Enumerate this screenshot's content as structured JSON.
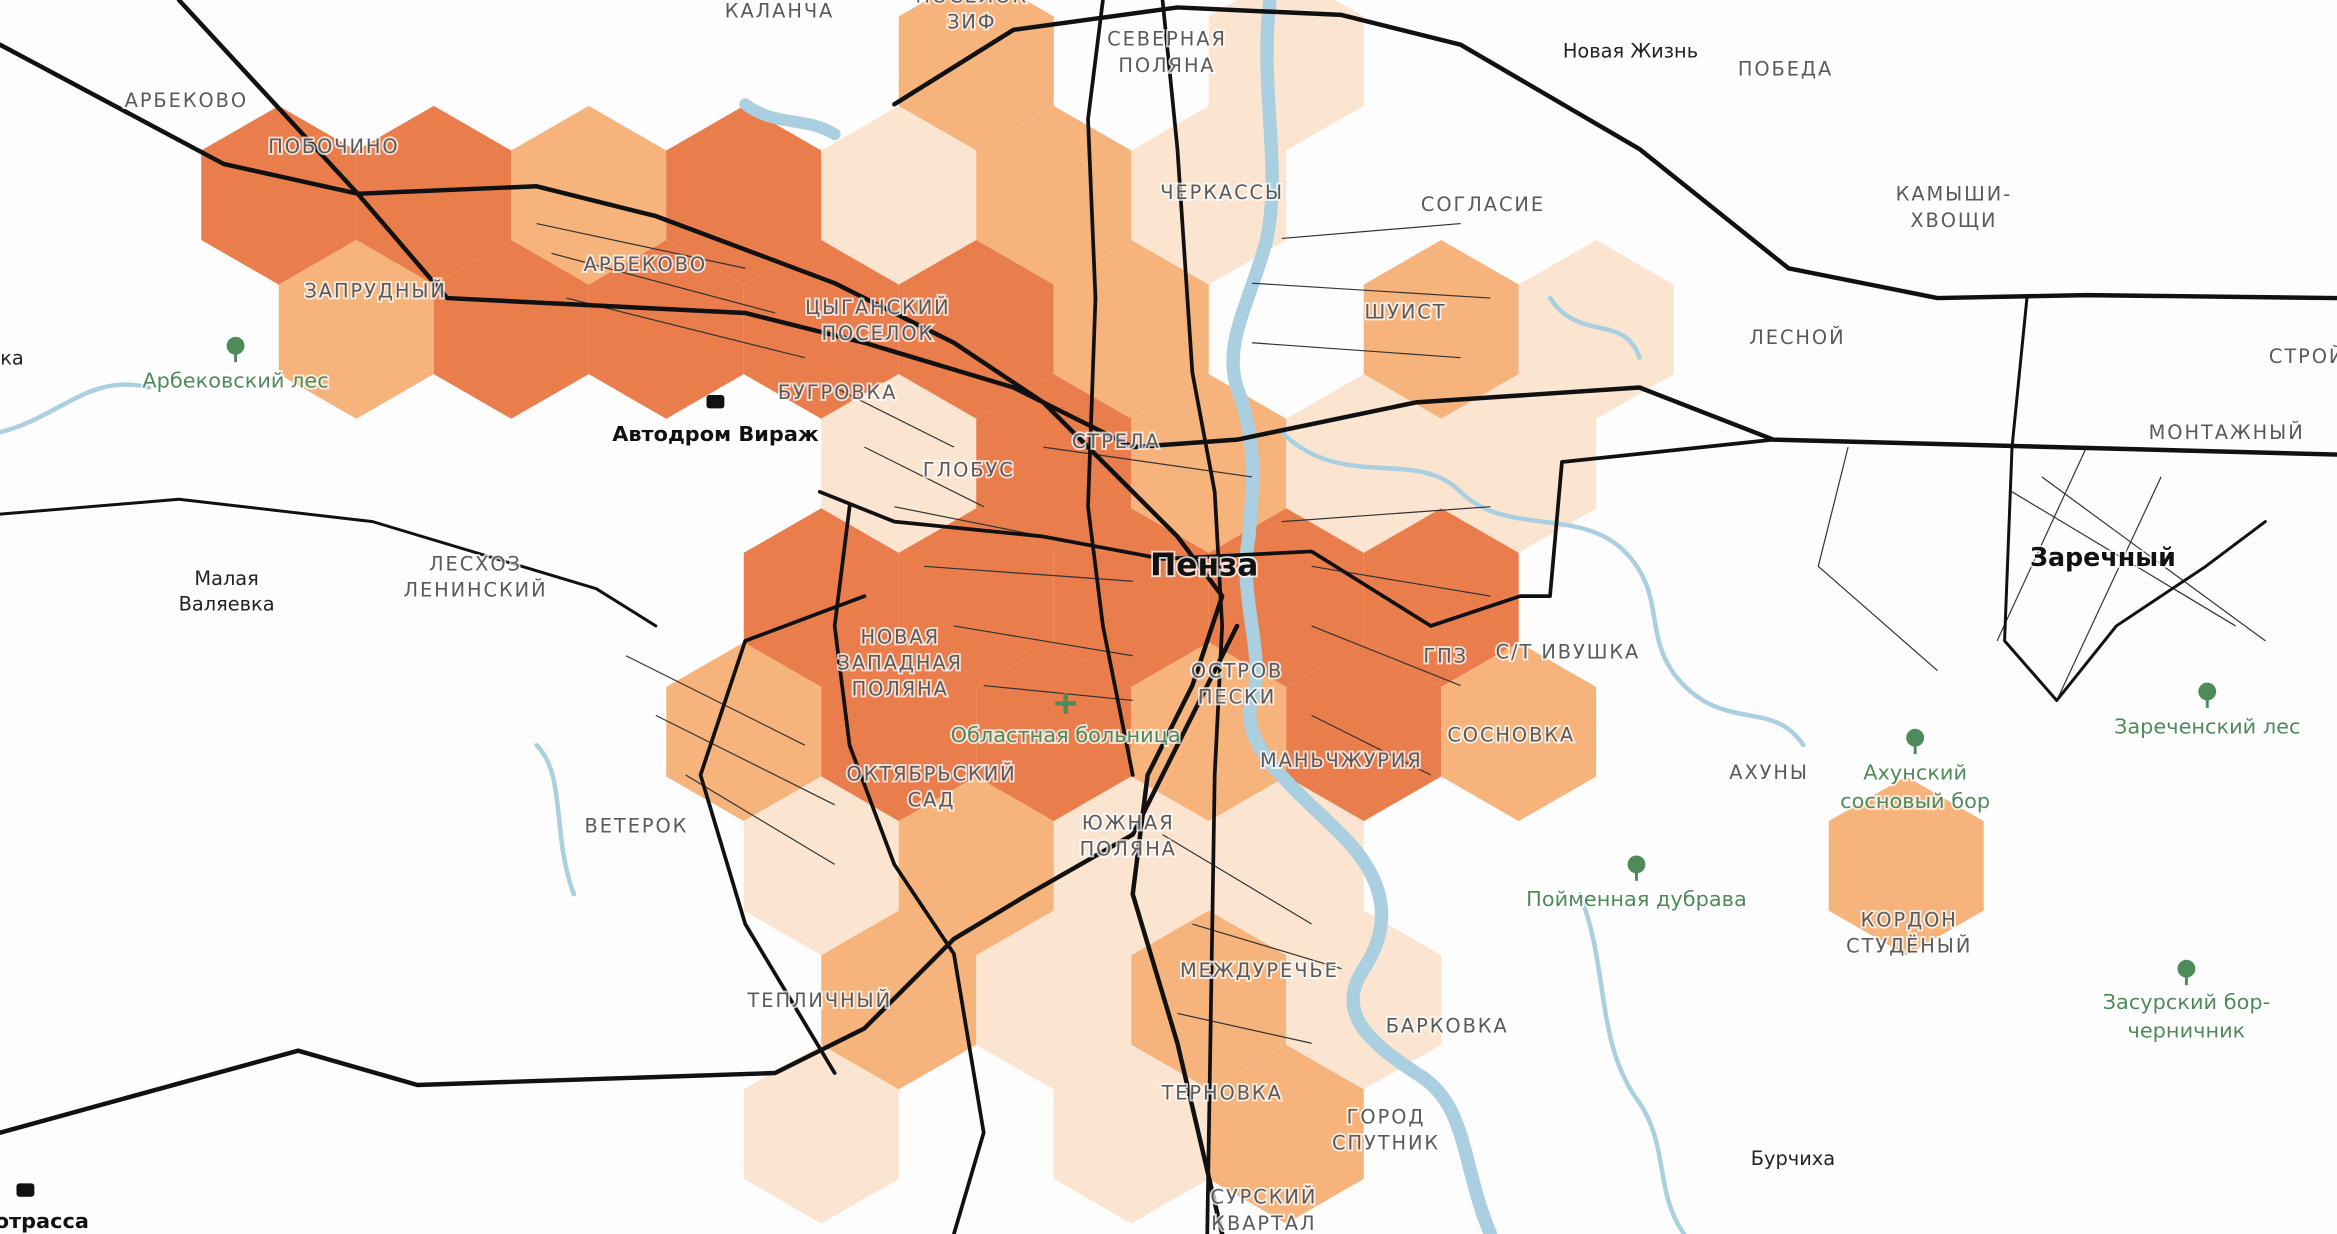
{
  "map": {
    "districts": [
      [
        "КАЛАНЧА"
      ],
      [
        "ПОСЕЛОК",
        "ЗИФ"
      ],
      [
        "СЕВЕРНАЯ",
        "ПОЛЯНА"
      ],
      [
        "АРБЕКОВО"
      ],
      [
        "ПОБОЧИНО"
      ],
      [
        "ЗАПРУДНЫЙ"
      ],
      [
        "АРБЕКОВО"
      ],
      [
        "ЦЫГАНСКИЙ",
        "ПОСЕЛОК"
      ],
      [
        "БУГРОВКА"
      ],
      [
        "ЧЕРКАССЫ"
      ],
      [
        "СОГЛАСИЕ"
      ],
      [
        "ШУИСТ"
      ],
      [
        "ПОБЕДА"
      ],
      [
        "КАМЫШИ-",
        "ХВОЩИ"
      ],
      [
        "ЛЕСНОЙ"
      ],
      [
        "СТРОЙ"
      ],
      [
        "МОНТАЖНЫЙ"
      ],
      [
        "СТРЕЛА"
      ],
      [
        "ГЛОБУС"
      ],
      [
        "ЛЕСХОЗ",
        "ЛЕНИНСКИЙ"
      ],
      [
        "НОВАЯ",
        "ЗАПАДНАЯ",
        "ПОЛЯНА"
      ],
      [
        "ОСТРОВ",
        "ПЕСКИ"
      ],
      [
        "ГПЗ"
      ],
      [
        "С/Т ИВУШКА"
      ],
      [
        "СОСНОВКА"
      ],
      [
        "МАНЬЧЖУРИЯ"
      ],
      [
        "ОКТЯБРЬСКИЙ",
        "САД"
      ],
      [
        "ВЕТЕРОК"
      ],
      [
        "ЮЖНАЯ",
        "ПОЛЯНА"
      ],
      [
        "АХУНЫ"
      ],
      [
        "КОРДОН",
        "СТУДЁНЫЙ"
      ],
      [
        "МЕЖДУРЕЧЬЕ"
      ],
      [
        "ТЕПЛИЧНЫЙ"
      ],
      [
        "БАРКОВКА"
      ],
      [
        "ТЕРНОВКА"
      ],
      [
        "ГОРОД",
        "СПУТНИК"
      ],
      [
        "СУРСКИЙ",
        "КВАРТАЛ"
      ]
    ],
    "settlements": [
      [
        "Новая Жизнь"
      ],
      [
        "Малая",
        "Валяевка"
      ],
      [
        "Бурчиха"
      ],
      [
        "ка"
      ]
    ],
    "cities": [
      [
        "Пенза"
      ]
    ],
    "towns": [
      [
        "Заречный"
      ]
    ],
    "pois": [
      [
        "Автодром Вираж"
      ],
      [
        "отрасса"
      ]
    ],
    "nature": [
      [
        "Арбековский лес"
      ],
      [
        "Областная больница"
      ],
      [
        "Ахунский",
        "сосновый бор"
      ],
      [
        "Пойменная дубрава"
      ],
      [
        "Зареченский лес"
      ],
      [
        "Засурский бор-",
        "черничник"
      ]
    ]
  }
}
